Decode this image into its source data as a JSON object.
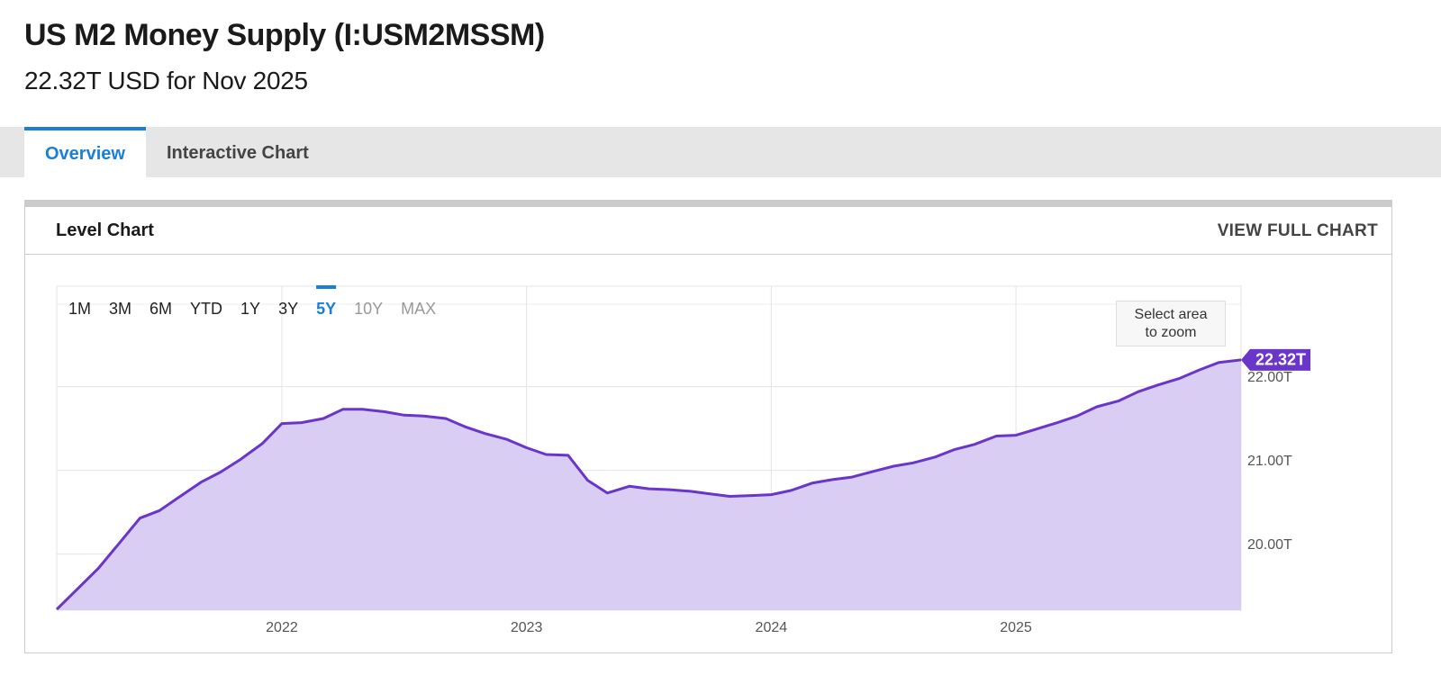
{
  "header": {
    "title": "US M2 Money Supply (I:USM2MSSM)",
    "subtitle": "22.32T USD for Nov 2025"
  },
  "tabs": [
    "Overview",
    "Interactive Chart"
  ],
  "active_tab": 0,
  "card": {
    "title": "Level Chart",
    "action": "VIEW FULL CHART"
  },
  "range_selector": {
    "options": [
      "1M",
      "3M",
      "6M",
      "YTD",
      "1Y",
      "3Y",
      "5Y",
      "10Y",
      "MAX"
    ],
    "active": 6,
    "disabled": [
      7,
      8
    ]
  },
  "zoom_hint": "Select area to zoom",
  "chart_data": {
    "type": "area",
    "color": "#6a35c9",
    "fill": "#d9cdf3",
    "grid": true,
    "x": [
      2021.08,
      2021.17,
      2021.25,
      2021.33,
      2021.42,
      2021.5,
      2021.58,
      2021.67,
      2021.75,
      2021.83,
      2021.92,
      2022.0,
      2022.08,
      2022.17,
      2022.25,
      2022.33,
      2022.42,
      2022.5,
      2022.58,
      2022.67,
      2022.75,
      2022.83,
      2022.92,
      2023.0,
      2023.08,
      2023.17,
      2023.25,
      2023.33,
      2023.42,
      2023.5,
      2023.58,
      2023.67,
      2023.75,
      2023.83,
      2023.92,
      2024.0,
      2024.08,
      2024.17,
      2024.25,
      2024.33,
      2024.42,
      2024.5,
      2024.58,
      2024.67,
      2024.75,
      2024.83,
      2024.92,
      2025.0,
      2025.08,
      2025.17,
      2025.25,
      2025.33,
      2025.42,
      2025.5,
      2025.58,
      2025.67,
      2025.75,
      2025.83,
      2025.92
    ],
    "values": [
      19.34,
      19.6,
      19.83,
      20.11,
      20.43,
      20.52,
      20.68,
      20.86,
      20.98,
      21.13,
      21.32,
      21.56,
      21.57,
      21.62,
      21.73,
      21.73,
      21.7,
      21.66,
      21.65,
      21.62,
      21.52,
      21.44,
      21.37,
      21.27,
      21.19,
      21.18,
      20.88,
      20.73,
      20.81,
      20.78,
      20.77,
      20.75,
      20.72,
      20.69,
      20.7,
      20.71,
      20.76,
      20.85,
      20.89,
      20.92,
      20.99,
      21.05,
      21.09,
      21.16,
      21.25,
      21.31,
      21.41,
      21.42,
      21.49,
      21.57,
      21.65,
      21.76,
      21.83,
      21.94,
      22.02,
      22.1,
      22.2,
      22.29,
      22.32
    ],
    "xlim": [
      2021.08,
      2025.92
    ],
    "xticks": [
      2022,
      2023,
      2024,
      2025
    ],
    "ylim": [
      19.33,
      23.2
    ],
    "yticks": [
      {
        "value": 20,
        "label": "20.00T"
      },
      {
        "value": 21,
        "label": "21.00T"
      },
      {
        "value": 22,
        "label": "22.00T"
      }
    ],
    "badge": {
      "value": 22.32,
      "label": "22.32T"
    }
  }
}
